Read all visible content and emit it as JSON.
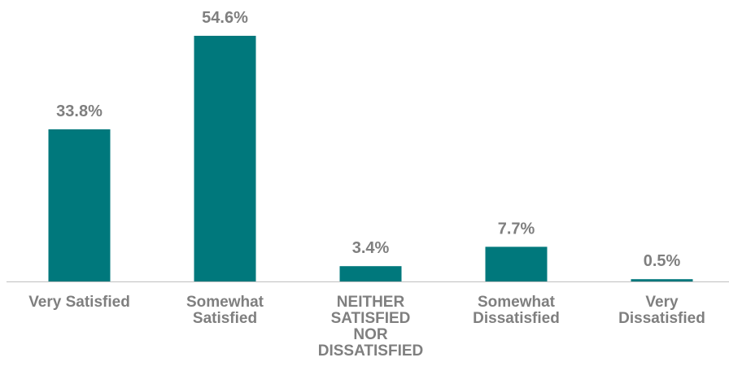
{
  "colors": {
    "bar": "#00787c",
    "label": "#7f7f7f",
    "axis": "#bfbfbf",
    "background": "#ffffff"
  },
  "chart_data": {
    "type": "bar",
    "title": "",
    "xlabel": "",
    "ylabel": "",
    "categories": [
      "Very Satisfied",
      "Somewhat Satisfied",
      "NEITHER SATISFIED NOR DISSATISFIED",
      "Somewhat Dissatisfied",
      "Very Dissatisfied"
    ],
    "category_lines": [
      [
        "Very Satisfied"
      ],
      [
        "Somewhat",
        "Satisfied"
      ],
      [
        "NEITHER",
        "SATISFIED",
        "NOR",
        "DISSATISFIED"
      ],
      [
        "Somewhat",
        "Dissatisfied"
      ],
      [
        "Very",
        "Dissatisfied"
      ]
    ],
    "values": [
      33.8,
      54.6,
      3.4,
      7.7,
      0.5
    ],
    "data_labels": [
      "33.8%",
      "54.6%",
      "3.4%",
      "7.7%",
      "0.5%"
    ],
    "unit": "%",
    "ylim": [
      0,
      54.6
    ],
    "grid": false,
    "legend": "none"
  }
}
